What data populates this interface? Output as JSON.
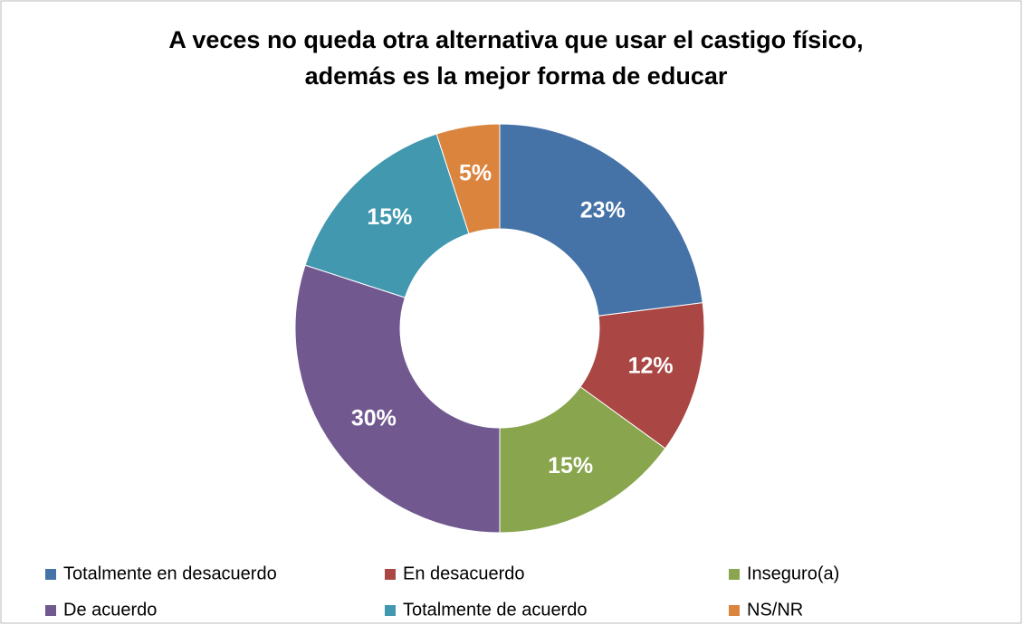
{
  "chart_data": {
    "type": "donut",
    "title": [
      "A veces no queda otra alternativa que usar el castigo físico,",
      "además es la mejor forma de educar"
    ],
    "categories": [
      "Totalmente en desacuerdo",
      "En desacuerdo",
      "Inseguro(a)",
      "De acuerdo",
      "Totalmente de acuerdo",
      "NS/NR"
    ],
    "values": [
      23,
      12,
      15,
      30,
      15,
      5
    ],
    "value_labels": [
      "23%",
      "12%",
      "15%",
      "30%",
      "15%",
      "5%"
    ],
    "colors": [
      "#4572a7",
      "#aa4643",
      "#89a54e",
      "#71588f",
      "#4198af",
      "#db843d"
    ],
    "legend": "bottom"
  }
}
